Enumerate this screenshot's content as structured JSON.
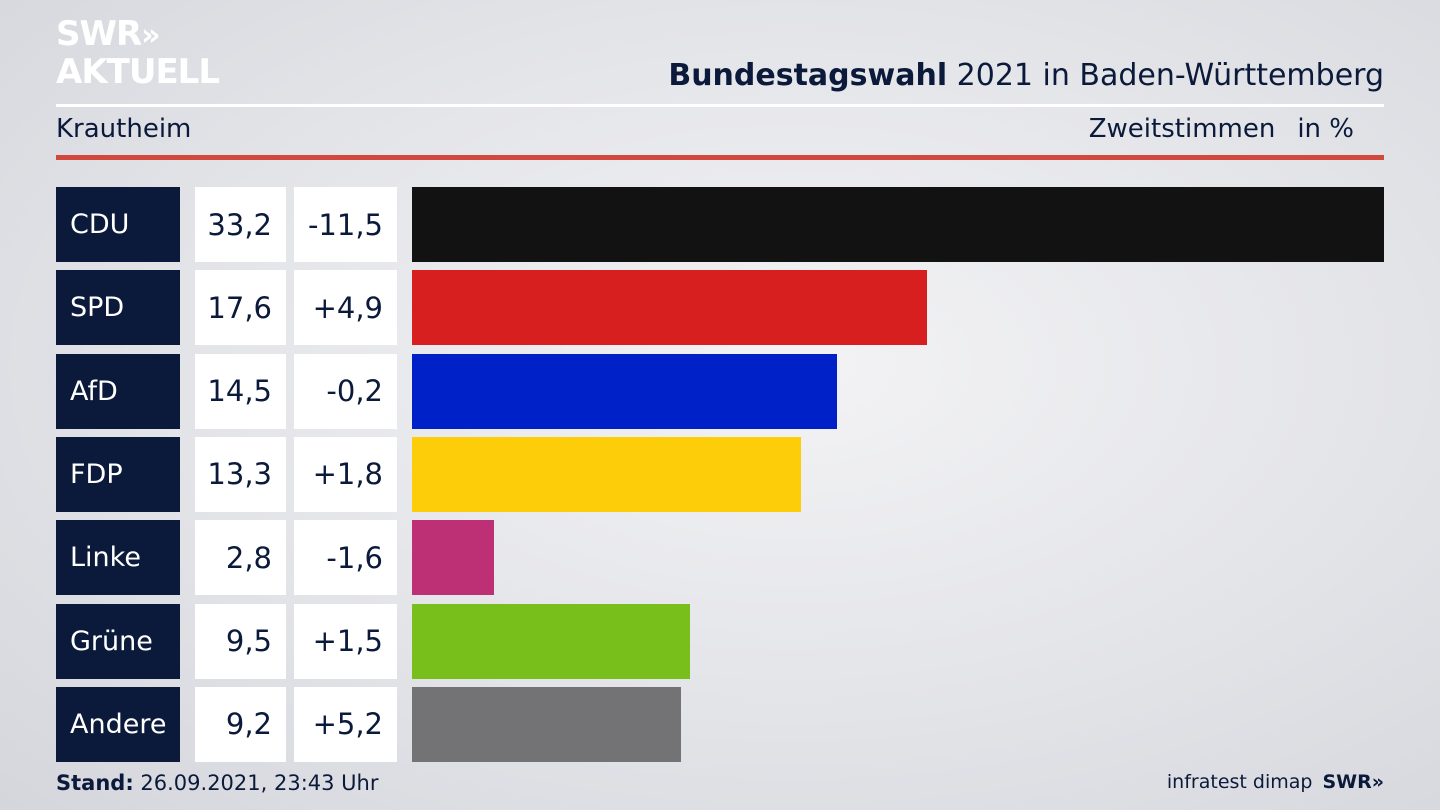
{
  "brand": {
    "line1": "SWR",
    "chevrons": "»",
    "line2": "AKTUELL"
  },
  "header": {
    "title_bold": "Bundestagswahl",
    "title_rest": " 2021 in Baden-Württemberg",
    "subtitle": "Krautheim",
    "metric": "Zweitstimmen",
    "unit": "in %"
  },
  "chart_data": {
    "type": "bar",
    "orientation": "horizontal",
    "categories": [
      "CDU",
      "SPD",
      "AfD",
      "FDP",
      "Linke",
      "Grüne",
      "Andere"
    ],
    "values": [
      33.2,
      17.6,
      14.5,
      13.3,
      2.8,
      9.5,
      9.2
    ],
    "value_labels": [
      "33,2",
      "17,6",
      "14,5",
      "13,3",
      "2,8",
      "9,5",
      "9,2"
    ],
    "changes": [
      "-11,5",
      "+4,9",
      "-0,2",
      "+1,8",
      "-1,6",
      "+1,5",
      "+5,2"
    ],
    "colors": [
      "#121212",
      "#d81f20",
      "#0021c8",
      "#fecd0a",
      "#bd3075",
      "#79bf1b",
      "#737375"
    ],
    "xlim": [
      0,
      33.2
    ]
  },
  "footer": {
    "stand_label": "Stand:",
    "stand_value": " 26.09.2021, 23:43 Uhr",
    "source": "infratest dimap",
    "source_brand": "SWR»"
  }
}
